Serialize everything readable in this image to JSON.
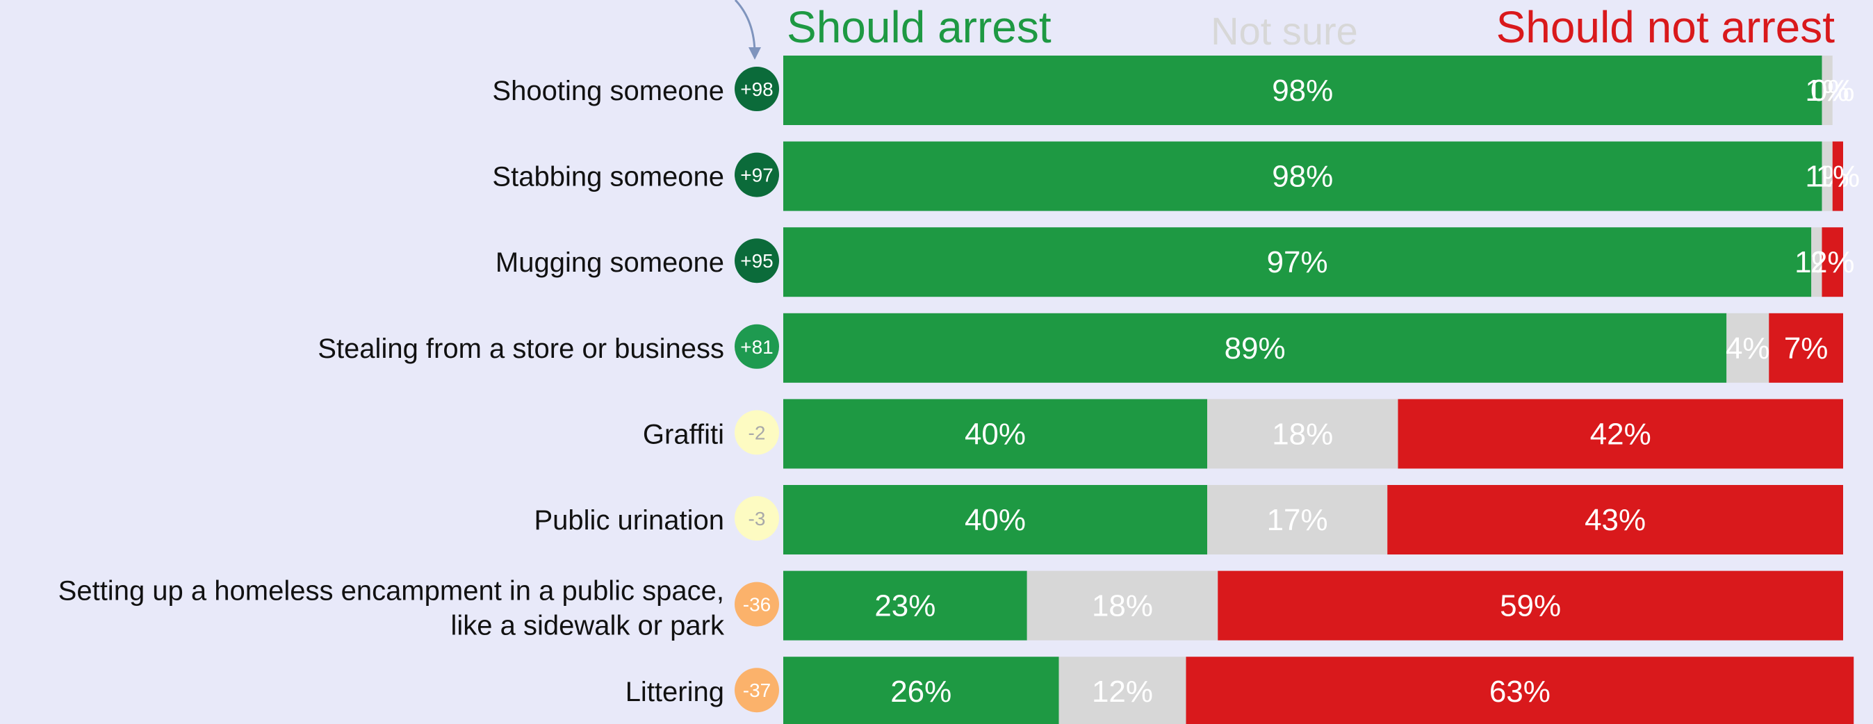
{
  "chart_data": {
    "type": "bar",
    "orientation": "horizontal",
    "stacked": true,
    "normalized": "percent",
    "legend_headers": [
      {
        "label": "Should arrest",
        "color": "#1e9943"
      },
      {
        "label": "Not sure",
        "color": "#d7d7d7"
      },
      {
        "label": "Should not arrest",
        "color": "#d9191c"
      }
    ],
    "categories": [
      "Shooting someone",
      "Stabbing someone",
      "Mugging someone",
      "Stealing from a store or business",
      "Graffiti",
      "Public urination",
      "Setting up a homeless encampment in a public space, like a sidewalk or park",
      "Littering"
    ],
    "label_lines": [
      [
        "Shooting someone"
      ],
      [
        "Stabbing someone"
      ],
      [
        "Mugging someone"
      ],
      [
        "Stealing from a store or business"
      ],
      [
        "Graffiti"
      ],
      [
        "Public urination"
      ],
      [
        "Setting up a homeless encampment in a public space,",
        "like a sidewalk or park"
      ],
      [
        "Littering"
      ]
    ],
    "net": [
      "+98",
      "+97",
      "+95",
      "+81",
      "-2",
      "-3",
      "-36",
      "-37"
    ],
    "net_colors": [
      {
        "fill": "#0b6b3a",
        "text": "#ffffff"
      },
      {
        "fill": "#0b6b3a",
        "text": "#ffffff"
      },
      {
        "fill": "#0b6b3a",
        "text": "#ffffff"
      },
      {
        "fill": "#1e9a50",
        "text": "#ffffff"
      },
      {
        "fill": "#fdfbc2",
        "text": "#a9a9a9"
      },
      {
        "fill": "#fdfbc2",
        "text": "#a9a9a9"
      },
      {
        "fill": "#fbb26b",
        "text": "#ffffff"
      },
      {
        "fill": "#fbb26b",
        "text": "#ffffff"
      }
    ],
    "series": [
      {
        "name": "Should arrest",
        "color": "#1e9943",
        "values": [
          98,
          98,
          97,
          89,
          40,
          40,
          23,
          26
        ]
      },
      {
        "name": "Not sure",
        "color": "#d7d7d7",
        "values": [
          1,
          1,
          1,
          4,
          18,
          17,
          18,
          12
        ]
      },
      {
        "name": "Should not arrest",
        "color": "#d9191c",
        "values": [
          0,
          1,
          2,
          7,
          42,
          43,
          59,
          63
        ]
      }
    ]
  }
}
